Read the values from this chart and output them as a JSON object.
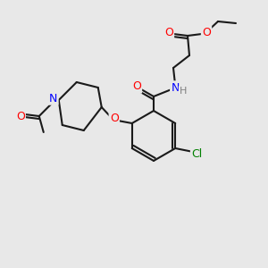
{
  "bg_color": "#e8e8e8",
  "bond_color": "#1a1a1a",
  "atom_colors": {
    "O": "#ff0000",
    "N": "#0000ff",
    "Cl": "#008000",
    "H": "#808080",
    "C": "#1a1a1a"
  },
  "figsize": [
    3.0,
    3.0
  ],
  "dpi": 100
}
